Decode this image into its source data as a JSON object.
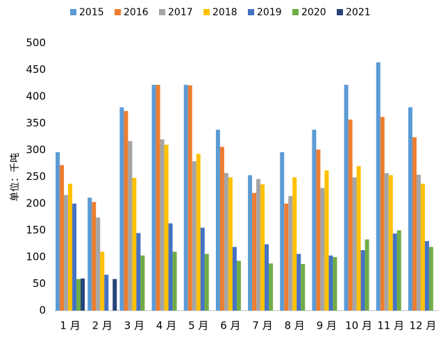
{
  "chart_data": {
    "type": "bar",
    "y_label": "单位：千吨",
    "categories": [
      "1 月",
      "2 月",
      "3 月",
      "4 月",
      "5 月",
      "6 月",
      "7 月",
      "8 月",
      "9 月",
      "10 月",
      "11 月",
      "12 月"
    ],
    "series": [
      {
        "name": "2015",
        "color": "#5b9bd5",
        "values": [
          296,
          211,
          380,
          422,
          422,
          338,
          253,
          296,
          338,
          422,
          464,
          380
        ]
      },
      {
        "name": "2016",
        "color": "#ed7d31",
        "values": [
          272,
          203,
          373,
          422,
          421,
          306,
          220,
          200,
          301,
          357,
          362,
          324
        ]
      },
      {
        "name": "2017",
        "color": "#a5a5a5",
        "values": [
          216,
          174,
          317,
          320,
          279,
          257,
          246,
          214,
          229,
          249,
          257,
          254
        ]
      },
      {
        "name": "2018",
        "color": "#ffc000",
        "values": [
          237,
          110,
          248,
          310,
          293,
          249,
          236,
          249,
          262,
          270,
          253,
          237
        ]
      },
      {
        "name": "2019",
        "color": "#4472c4",
        "values": [
          200,
          67,
          145,
          163,
          155,
          119,
          124,
          106,
          103,
          113,
          144,
          130
        ]
      },
      {
        "name": "2020",
        "color": "#70ad47",
        "values": [
          59,
          null,
          103,
          110,
          106,
          93,
          88,
          87,
          100,
          133,
          150,
          119
        ]
      },
      {
        "name": "2021",
        "color": "#264478",
        "values": [
          60,
          59,
          null,
          null,
          null,
          null,
          null,
          null,
          null,
          null,
          null,
          null
        ]
      }
    ],
    "ylim": [
      0,
      500
    ],
    "yticks": [
      0,
      50,
      100,
      150,
      200,
      250,
      300,
      350,
      400,
      450,
      500
    ],
    "grid": false,
    "legend": "top"
  }
}
